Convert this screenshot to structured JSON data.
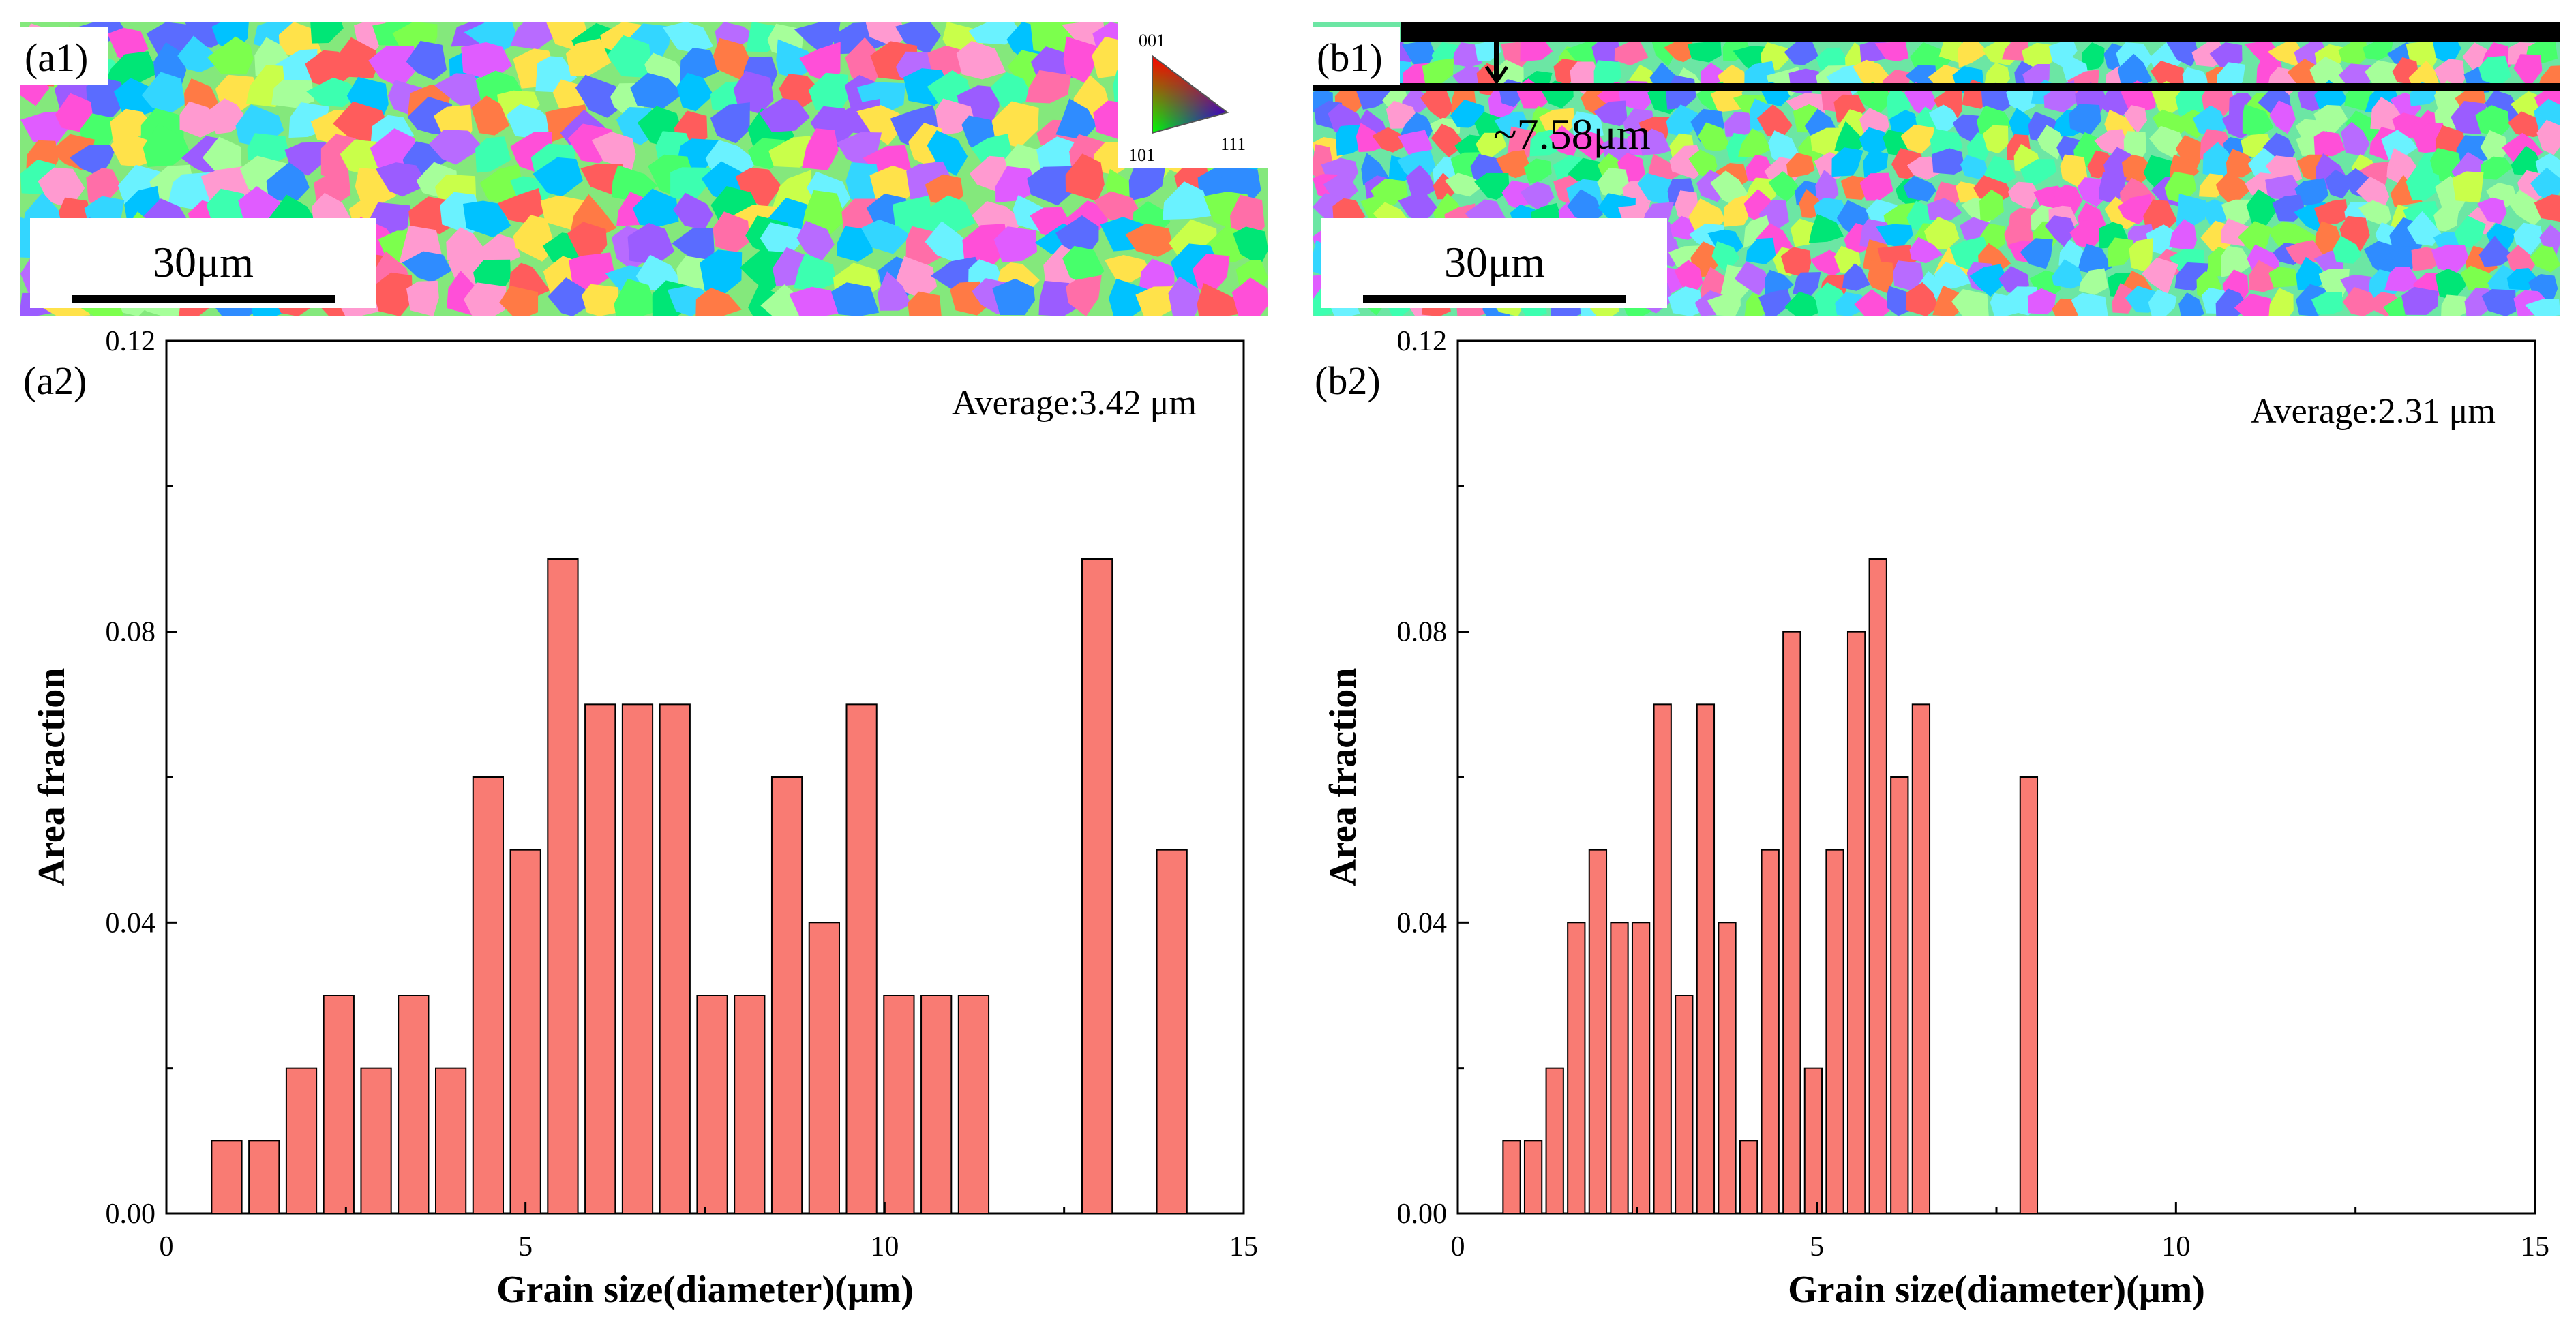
{
  "figure": {
    "ebsd_a": {
      "label": "(a1)",
      "scale_label": "30μm"
    },
    "ebsd_b": {
      "label": "(b1)",
      "scale_label": "30μm",
      "layer_label": "~7.58μm"
    },
    "ipf_key": {
      "top": "001",
      "left": "101",
      "right": "111"
    }
  },
  "chart_data": [
    {
      "type": "bar",
      "panel": "(a2)",
      "annotation": "Average:3.42 μm",
      "xlabel": "Grain size(diameter)(μm)",
      "ylabel": "Area fraction",
      "xlim": [
        0,
        15
      ],
      "ylim": [
        0,
        0.12
      ],
      "xticks": [
        0,
        5,
        10,
        15
      ],
      "yticks": [
        0.0,
        0.04,
        0.08,
        0.12
      ],
      "ytick_labels": [
        "0.00",
        "0.04",
        "0.08",
        "0.12"
      ],
      "bar_width": 0.42,
      "bar_color": "#f97b73",
      "x": [
        0.84,
        1.36,
        1.88,
        2.4,
        2.92,
        3.44,
        3.96,
        4.48,
        5.0,
        5.52,
        6.04,
        6.56,
        7.08,
        7.6,
        8.12,
        8.64,
        9.16,
        9.68,
        10.2,
        10.72,
        11.24,
        12.96,
        14.0
      ],
      "values": [
        0.01,
        0.01,
        0.02,
        0.03,
        0.02,
        0.03,
        0.02,
        0.06,
        0.05,
        0.09,
        0.07,
        0.07,
        0.07,
        0.03,
        0.03,
        0.06,
        0.04,
        0.07,
        0.03,
        0.03,
        0.03,
        0.09,
        0.05
      ]
    },
    {
      "type": "bar",
      "panel": "(b2)",
      "annotation": "Average:2.31 μm",
      "xlabel": "Grain size(diameter)(μm)",
      "ylabel": "Area fraction",
      "xlim": [
        0,
        15
      ],
      "ylim": [
        0,
        0.12
      ],
      "xticks": [
        0,
        5,
        10,
        15
      ],
      "yticks": [
        0.0,
        0.04,
        0.08,
        0.12
      ],
      "ytick_labels": [
        "0.00",
        "0.04",
        "0.08",
        "0.12"
      ],
      "bar_width": 0.24,
      "bar_color": "#f97b73",
      "x": [
        0.75,
        1.05,
        1.35,
        1.65,
        1.95,
        2.25,
        2.55,
        2.85,
        3.15,
        3.45,
        3.75,
        4.05,
        4.35,
        4.65,
        4.95,
        5.25,
        5.55,
        5.85,
        6.15,
        6.45,
        7.95
      ],
      "values": [
        0.01,
        0.01,
        0.02,
        0.04,
        0.05,
        0.04,
        0.04,
        0.07,
        0.03,
        0.07,
        0.04,
        0.01,
        0.05,
        0.08,
        0.02,
        0.05,
        0.08,
        0.09,
        0.06,
        0.07,
        0.06
      ]
    }
  ]
}
